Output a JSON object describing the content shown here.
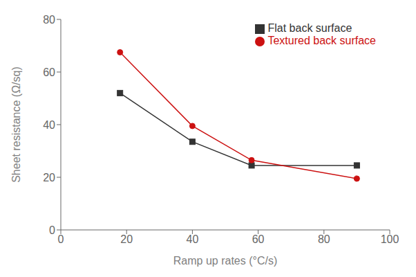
{
  "chart_data": {
    "type": "line",
    "x": [
      18,
      40,
      58,
      90
    ],
    "series": [
      {
        "name": "Flat back surface",
        "color": "#333333",
        "marker": "square",
        "values": [
          52,
          33.5,
          24.5,
          24.5
        ]
      },
      {
        "name": "Textured back surface",
        "color": "#cc1111",
        "marker": "circle",
        "values": [
          67.5,
          39.5,
          26.5,
          19.5
        ]
      }
    ],
    "xlabel": "Ramp up rates (°C/s)",
    "ylabel": "Sheet resistance (Ω/sq)",
    "xlim": [
      0,
      100
    ],
    "ylim": [
      0,
      80
    ],
    "xticks": [
      0,
      20,
      40,
      60,
      80,
      100
    ],
    "yticks": [
      0,
      20,
      40,
      60,
      80
    ],
    "grid": false,
    "legend": "upper right"
  }
}
